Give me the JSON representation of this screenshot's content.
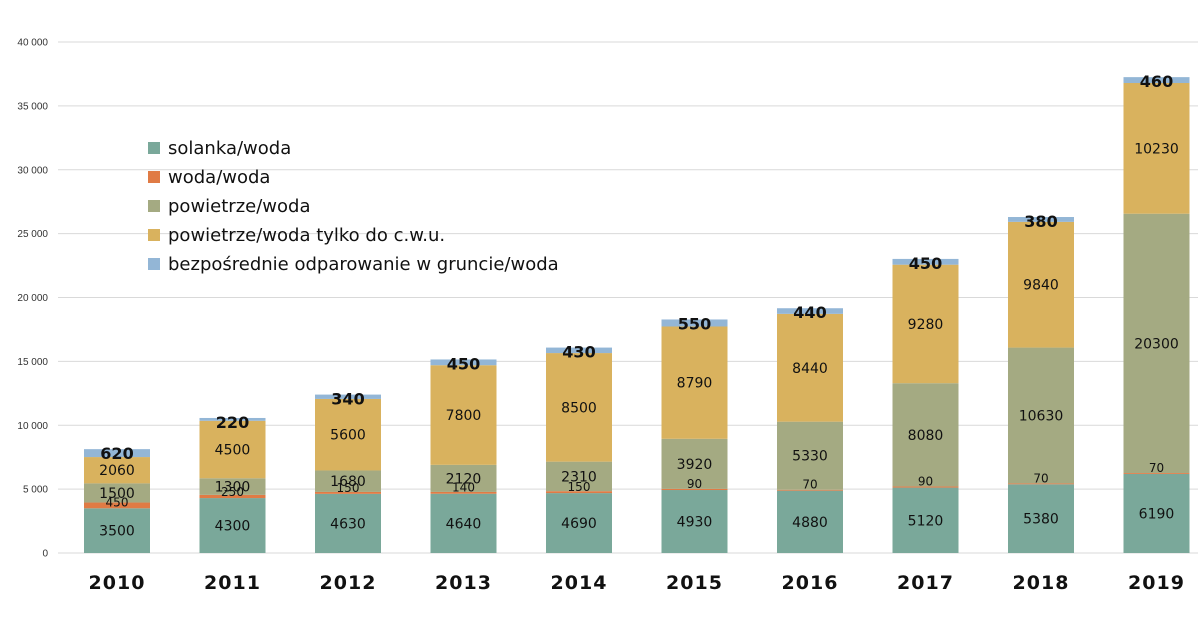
{
  "chart_data": {
    "type": "bar",
    "stacked": true,
    "categories": [
      "2010",
      "2011",
      "2012",
      "2013",
      "2014",
      "2015",
      "2016",
      "2017",
      "2018",
      "2019"
    ],
    "series": [
      {
        "name": "solanka/woda",
        "color": "#7aa89a",
        "values": [
          3500,
          4300,
          4630,
          4640,
          4690,
          4930,
          4880,
          5120,
          5380,
          6190
        ]
      },
      {
        "name": "woda/woda",
        "color": "#e07b45",
        "values": [
          450,
          250,
          150,
          140,
          150,
          90,
          70,
          90,
          70,
          70
        ]
      },
      {
        "name": "powietrze/woda",
        "color": "#a4aa82",
        "values": [
          1500,
          1300,
          1680,
          2120,
          2310,
          3920,
          5330,
          8080,
          10630,
          20300
        ]
      },
      {
        "name": "powietrze/woda tylko do c.w.u.",
        "color": "#d9b25e",
        "values": [
          2060,
          4500,
          5600,
          7800,
          8500,
          8790,
          8440,
          9280,
          9840,
          10230
        ]
      },
      {
        "name": "bezpośrednie odparowanie w gruncie/woda",
        "color": "#93b6d6",
        "values": [
          620,
          220,
          340,
          450,
          430,
          550,
          440,
          450,
          380,
          460
        ]
      }
    ],
    "ylim": [
      0,
      40000
    ],
    "yticks": [
      "0",
      "5 000",
      "10 000",
      "15 000",
      "20 000",
      "25 000",
      "30 000",
      "35 000",
      "40 000"
    ],
    "grid": true,
    "legend_position": "top-left"
  }
}
